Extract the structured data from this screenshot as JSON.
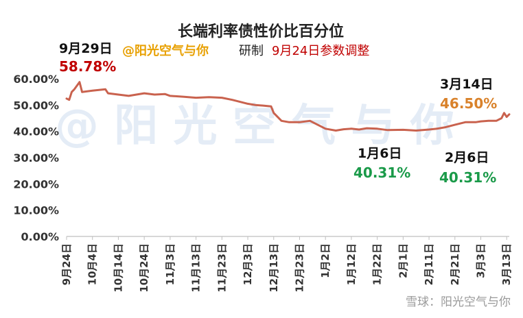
{
  "title": "长端利率债性价比百分位",
  "subtitle": {
    "author": "@阳光空气与你",
    "mid": "研制",
    "note": "9月24日参数调整"
  },
  "watermark": "@ 阳 光 空 气 与 你",
  "footer": "雪球：阳光空气与你",
  "colors": {
    "line": "#c9624e",
    "red": "#c00000",
    "orange": "#d9822b",
    "green": "#1a9a49",
    "axis": "#bfbfbf"
  },
  "annotations": {
    "peak": {
      "date": "9月29日",
      "value": "58.78%"
    },
    "jan6": {
      "date": "1月6日",
      "value": "40.31%"
    },
    "feb6": {
      "date": "2月6日",
      "value": "40.31%"
    },
    "mar14": {
      "date": "3月14日",
      "value": "46.50%"
    }
  },
  "chart_data": {
    "type": "line",
    "title": "长端利率债性价比百分位",
    "ylim": [
      0,
      60
    ],
    "yticks": [
      "0.00%",
      "10.00%",
      "20.00%",
      "30.00%",
      "40.00%",
      "50.00%",
      "60.00%"
    ],
    "ytick_values": [
      0,
      10,
      20,
      30,
      40,
      50,
      60
    ],
    "xticks": [
      "9月24日",
      "10月4日",
      "10月14日",
      "10月24日",
      "11月3日",
      "11月13日",
      "11月23日",
      "12月3日",
      "12月13日",
      "12月23日",
      "1月2日",
      "1月12日",
      "1月22日",
      "2月1日",
      "2月11日",
      "2月21日",
      "3月3日",
      "3月13日"
    ],
    "grid": false,
    "series": [
      {
        "x": [
          "9月24日",
          "9月25日",
          "9月26日",
          "9月27日",
          "9月29日",
          "9月30日",
          "10月4日",
          "10月9日",
          "10月10日",
          "10月14日",
          "10月18日",
          "10月21日",
          "10月24日",
          "10月28日",
          "11月1日",
          "11月3日",
          "11月8日",
          "11月13日",
          "11月18日",
          "11月23日",
          "11月27日",
          "12月3日",
          "12月6日",
          "12月9日",
          "12月12日",
          "12月13日",
          "12月16日",
          "12月19日",
          "12月23日",
          "12月27日",
          "12月30日",
          "1月2日",
          "1月6日",
          "1月9日",
          "1月12日",
          "1月15日",
          "1月18日",
          "1月22日",
          "1月26日",
          "2月1日",
          "2月6日",
          "2月11日",
          "2月14日",
          "2月17日",
          "2月21日",
          "2月25日",
          "3月1日",
          "3月3日",
          "3月6日",
          "3月9日",
          "3月11日",
          "3月12日",
          "3月13日",
          "3月14日"
        ],
        "values": [
          52.5,
          52.0,
          55.0,
          56.0,
          58.78,
          55.0,
          55.5,
          56.0,
          54.5,
          54.0,
          53.5,
          54.0,
          54.5,
          54.0,
          54.2,
          53.5,
          53.2,
          52.8,
          53.0,
          52.8,
          52.0,
          50.5,
          50.0,
          49.8,
          49.5,
          47.0,
          44.0,
          43.5,
          43.5,
          44.0,
          42.5,
          41.0,
          40.31,
          40.8,
          41.0,
          40.7,
          41.2,
          41.0,
          40.5,
          40.6,
          40.31,
          40.7,
          41.0,
          41.5,
          42.5,
          43.5,
          43.5,
          43.8,
          44.0,
          44.0,
          45.0,
          47.0,
          45.5,
          46.5
        ]
      }
    ]
  }
}
